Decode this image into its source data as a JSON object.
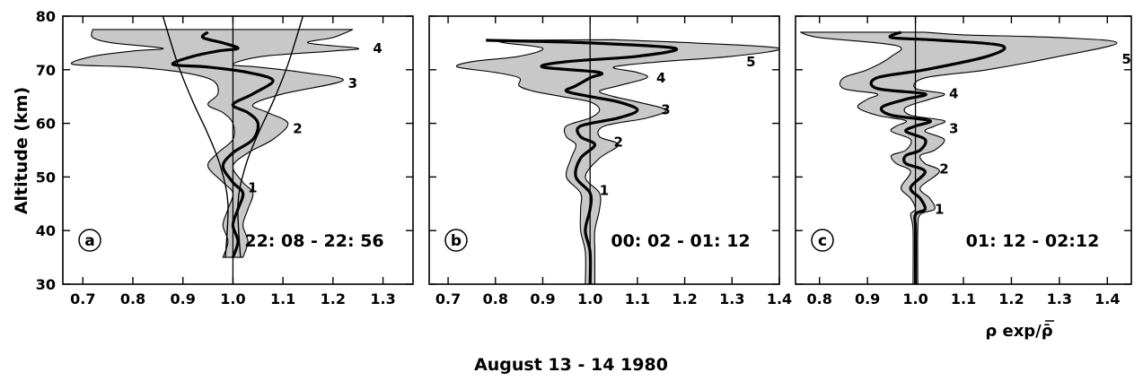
{
  "figure": {
    "caption": "August   13 - 14   1980",
    "y_axis_label": "Altitude (km)",
    "x_axis_label": "ρ exp/ρ̄"
  },
  "chart_data": [
    {
      "type": "line",
      "panel": "a",
      "period": "22: 08 - 22: 56",
      "ylim": [
        30,
        80
      ],
      "yticks": [
        30,
        40,
        50,
        60,
        70,
        80
      ],
      "xlim": [
        0.66,
        1.36
      ],
      "xticks": [
        "0.7",
        "0.8",
        "0.9",
        "1.0",
        "1.1",
        "1.2",
        "1.3"
      ],
      "reference_x": 1.0,
      "mean_profile": [
        [
          1.0,
          35
        ],
        [
          1.01,
          38
        ],
        [
          1.0,
          41
        ],
        [
          1.01,
          44
        ],
        [
          1.02,
          47
        ],
        [
          1.0,
          49
        ],
        [
          0.98,
          52
        ],
        [
          1.0,
          54.5
        ],
        [
          1.04,
          57
        ],
        [
          1.05,
          60
        ],
        [
          1.03,
          62
        ],
        [
          1.0,
          63.5
        ],
        [
          1.04,
          65.5
        ],
        [
          1.08,
          68
        ],
        [
          1.03,
          69.5
        ],
        [
          0.95,
          70.5
        ],
        [
          0.88,
          71
        ],
        [
          0.92,
          72.5
        ],
        [
          0.97,
          73.5
        ],
        [
          1.01,
          74
        ],
        [
          0.98,
          75
        ],
        [
          0.94,
          76
        ],
        [
          0.95,
          77
        ]
      ],
      "envelope_upper": [
        [
          1.02,
          35
        ],
        [
          1.03,
          38
        ],
        [
          1.02,
          41
        ],
        [
          1.03,
          44
        ],
        [
          1.04,
          47
        ],
        [
          1.02,
          49
        ],
        [
          1.0,
          52
        ],
        [
          1.03,
          54.5
        ],
        [
          1.08,
          57
        ],
        [
          1.11,
          60
        ],
        [
          1.07,
          62
        ],
        [
          1.04,
          63.5
        ],
        [
          1.1,
          65.5
        ],
        [
          1.22,
          68
        ],
        [
          1.14,
          69.5
        ],
        [
          1.05,
          70.5
        ],
        [
          1.0,
          71
        ],
        [
          1.06,
          72.5
        ],
        [
          1.2,
          73.5
        ],
        [
          1.25,
          74
        ],
        [
          1.15,
          75
        ],
        [
          1.2,
          76
        ],
        [
          1.24,
          77.5
        ]
      ],
      "envelope_lower": [
        [
          0.98,
          35
        ],
        [
          0.99,
          38
        ],
        [
          0.98,
          41
        ],
        [
          0.99,
          44
        ],
        [
          1.0,
          47
        ],
        [
          0.98,
          49
        ],
        [
          0.95,
          52
        ],
        [
          0.97,
          54.5
        ],
        [
          1.0,
          57
        ],
        [
          1.0,
          60
        ],
        [
          0.98,
          62
        ],
        [
          0.95,
          63.5
        ],
        [
          0.97,
          65.5
        ],
        [
          0.96,
          68
        ],
        [
          0.9,
          69.5
        ],
        [
          0.8,
          70.5
        ],
        [
          0.68,
          71
        ],
        [
          0.72,
          72.5
        ],
        [
          0.8,
          73.5
        ],
        [
          0.86,
          74
        ],
        [
          0.76,
          75
        ],
        [
          0.72,
          76
        ],
        [
          0.72,
          77.5
        ]
      ],
      "envelope_left": [
        [
          0.985,
          35
        ],
        [
          0.99,
          45
        ],
        [
          0.975,
          52
        ],
        [
          0.95,
          58
        ],
        [
          0.92,
          64
        ],
        [
          0.89,
          71
        ],
        [
          0.86,
          80
        ]
      ],
      "envelope_right": [
        [
          1.015,
          35
        ],
        [
          1.01,
          45
        ],
        [
          1.025,
          52
        ],
        [
          1.05,
          58
        ],
        [
          1.08,
          64
        ],
        [
          1.11,
          71
        ],
        [
          1.14,
          80
        ]
      ],
      "mode_labels": [
        {
          "text": "1",
          "x": 1.03,
          "y": 48
        },
        {
          "text": "2",
          "x": 1.12,
          "y": 59
        },
        {
          "text": "3",
          "x": 1.23,
          "y": 67.5
        },
        {
          "text": "4",
          "x": 1.28,
          "y": 74
        }
      ]
    },
    {
      "type": "line",
      "panel": "b",
      "period": "00: 02 - 01: 12",
      "ylim": [
        30,
        80
      ],
      "yticks": [
        30,
        40,
        50,
        60,
        70,
        80
      ],
      "xlim": [
        0.66,
        1.4
      ],
      "xticks": [
        "0.7",
        "0.8",
        "0.9",
        "1.0",
        "1.1",
        "1.2",
        "1.3",
        "1.4"
      ],
      "reference_x": 1.0,
      "mean_profile": [
        [
          1.0,
          30
        ],
        [
          1.0,
          36
        ],
        [
          0.99,
          40
        ],
        [
          1.0,
          44
        ],
        [
          1.0,
          47
        ],
        [
          0.97,
          50
        ],
        [
          0.98,
          53.5
        ],
        [
          1.01,
          56
        ],
        [
          0.98,
          57.5
        ],
        [
          0.98,
          59.5
        ],
        [
          1.06,
          61
        ],
        [
          1.1,
          62.5
        ],
        [
          1.06,
          64
        ],
        [
          1.0,
          65
        ],
        [
          0.95,
          66
        ],
        [
          0.97,
          67
        ],
        [
          1.0,
          68.5
        ],
        [
          1.02,
          69.5
        ],
        [
          0.9,
          70.5
        ],
        [
          0.95,
          71.5
        ],
        [
          1.1,
          72.5
        ],
        [
          1.18,
          74
        ],
        [
          1.0,
          75
        ],
        [
          0.78,
          75.5
        ]
      ],
      "envelope_upper": [
        [
          1.01,
          30
        ],
        [
          1.01,
          36
        ],
        [
          1.01,
          40
        ],
        [
          1.02,
          44
        ],
        [
          1.02,
          47
        ],
        [
          0.99,
          50
        ],
        [
          1.02,
          53.5
        ],
        [
          1.06,
          56
        ],
        [
          1.02,
          57.5
        ],
        [
          1.03,
          59.5
        ],
        [
          1.12,
          61
        ],
        [
          1.16,
          62.5
        ],
        [
          1.1,
          64
        ],
        [
          1.05,
          65
        ],
        [
          1.02,
          66
        ],
        [
          1.06,
          67
        ],
        [
          1.12,
          68.5
        ],
        [
          1.1,
          69.5
        ],
        [
          1.05,
          70.5
        ],
        [
          1.15,
          71.5
        ],
        [
          1.3,
          72.5
        ],
        [
          1.4,
          74
        ],
        [
          1.22,
          75
        ],
        [
          1.05,
          75.6
        ]
      ],
      "envelope_lower": [
        [
          0.99,
          30
        ],
        [
          0.99,
          36
        ],
        [
          0.98,
          40
        ],
        [
          0.98,
          44
        ],
        [
          0.98,
          47
        ],
        [
          0.95,
          50
        ],
        [
          0.96,
          53.5
        ],
        [
          0.97,
          56
        ],
        [
          0.95,
          57.5
        ],
        [
          0.95,
          59.5
        ],
        [
          1.0,
          61
        ],
        [
          1.02,
          62.5
        ],
        [
          1.0,
          64
        ],
        [
          0.94,
          65
        ],
        [
          0.88,
          66
        ],
        [
          0.85,
          67
        ],
        [
          0.85,
          68.5
        ],
        [
          0.8,
          69.5
        ],
        [
          0.72,
          70.5
        ],
        [
          0.75,
          71.5
        ],
        [
          0.85,
          72.5
        ],
        [
          0.9,
          74
        ],
        [
          0.82,
          75
        ],
        [
          0.8,
          75.5
        ]
      ],
      "mode_labels": [
        {
          "text": "1",
          "x": 1.02,
          "y": 47.5
        },
        {
          "text": "2",
          "x": 1.05,
          "y": 56.5
        },
        {
          "text": "3",
          "x": 1.15,
          "y": 62.5
        },
        {
          "text": "4",
          "x": 1.14,
          "y": 68.5
        },
        {
          "text": "5",
          "x": 1.33,
          "y": 71.5
        }
      ]
    },
    {
      "type": "line",
      "panel": "c",
      "period": "01: 12 - 02:12",
      "ylim": [
        30,
        80
      ],
      "yticks": [
        30,
        40,
        50,
        60,
        70,
        80
      ],
      "xlim": [
        0.75,
        1.45
      ],
      "xticks": [
        "0.8",
        "0.9",
        "1.0",
        "1.1",
        "1.2",
        "1.3",
        "1.4"
      ],
      "reference_x": 1.0,
      "mean_profile": [
        [
          1.0,
          30
        ],
        [
          1.0,
          40
        ],
        [
          1.0,
          43
        ],
        [
          1.02,
          44
        ],
        [
          1.01,
          46
        ],
        [
          0.99,
          48
        ],
        [
          1.02,
          51
        ],
        [
          0.98,
          52.5
        ],
        [
          0.98,
          54
        ],
        [
          1.01,
          55
        ],
        [
          1.02,
          57
        ],
        [
          0.98,
          58.5
        ],
        [
          1.0,
          59.5
        ],
        [
          1.03,
          60.5
        ],
        [
          0.95,
          61.5
        ],
        [
          0.93,
          63
        ],
        [
          0.98,
          64.5
        ],
        [
          1.02,
          65.5
        ],
        [
          0.92,
          66.5
        ],
        [
          0.92,
          68.5
        ],
        [
          1.02,
          70
        ],
        [
          1.15,
          72.5
        ],
        [
          1.18,
          74.5
        ],
        [
          1.05,
          75.5
        ],
        [
          0.95,
          76
        ],
        [
          0.97,
          77
        ]
      ],
      "envelope_upper": [
        [
          1.005,
          30
        ],
        [
          1.005,
          40
        ],
        [
          1.01,
          43
        ],
        [
          1.04,
          44
        ],
        [
          1.03,
          46
        ],
        [
          1.01,
          48
        ],
        [
          1.05,
          51
        ],
        [
          1.02,
          52.5
        ],
        [
          1.01,
          54
        ],
        [
          1.04,
          55
        ],
        [
          1.06,
          57
        ],
        [
          1.02,
          58.5
        ],
        [
          1.04,
          59.5
        ],
        [
          1.06,
          60.5
        ],
        [
          0.99,
          61.5
        ],
        [
          0.98,
          63
        ],
        [
          1.03,
          64.5
        ],
        [
          1.06,
          65.5
        ],
        [
          1.0,
          66.5
        ],
        [
          1.02,
          68.5
        ],
        [
          1.15,
          70
        ],
        [
          1.3,
          72.5
        ],
        [
          1.42,
          75
        ],
        [
          1.3,
          76
        ],
        [
          1.1,
          76.5
        ],
        [
          1.02,
          77
        ]
      ],
      "envelope_lower": [
        [
          0.995,
          30
        ],
        [
          0.995,
          40
        ],
        [
          0.99,
          43
        ],
        [
          1.0,
          44
        ],
        [
          0.99,
          46
        ],
        [
          0.97,
          48
        ],
        [
          0.99,
          51
        ],
        [
          0.96,
          52.5
        ],
        [
          0.95,
          54
        ],
        [
          0.98,
          55
        ],
        [
          0.99,
          57
        ],
        [
          0.95,
          58.5
        ],
        [
          0.96,
          59.5
        ],
        [
          0.98,
          60.5
        ],
        [
          0.92,
          61.5
        ],
        [
          0.88,
          63
        ],
        [
          0.9,
          64.5
        ],
        [
          0.92,
          65.5
        ],
        [
          0.85,
          66.5
        ],
        [
          0.85,
          68.5
        ],
        [
          0.9,
          70
        ],
        [
          0.95,
          72.5
        ],
        [
          0.96,
          74.5
        ],
        [
          0.8,
          76
        ],
        [
          0.76,
          77
        ]
      ],
      "mode_labels": [
        {
          "text": "1",
          "x": 1.04,
          "y": 44
        },
        {
          "text": "2",
          "x": 1.05,
          "y": 51.5
        },
        {
          "text": "3",
          "x": 1.07,
          "y": 59
        },
        {
          "text": "4",
          "x": 1.07,
          "y": 65.5
        },
        {
          "text": "5",
          "x": 1.43,
          "y": 72
        }
      ]
    }
  ]
}
